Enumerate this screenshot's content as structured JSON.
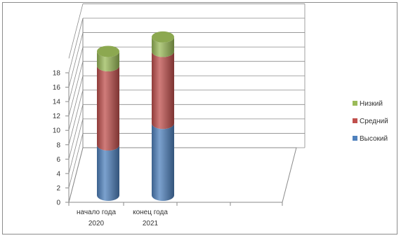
{
  "chart_data": {
    "type": "bar",
    "style": "3d-stacked-cylinder",
    "categories": [
      "начало года 2020",
      "конец года 2021"
    ],
    "category_lines": [
      [
        "начало года",
        "2020"
      ],
      [
        "конец года",
        "2021"
      ]
    ],
    "series": [
      {
        "name": "Высокий",
        "values": [
          7,
          10
        ],
        "color": "#4f81bd"
      },
      {
        "name": "Средний",
        "values": [
          11,
          10
        ],
        "color": "#c0504d"
      },
      {
        "name": "Низкий",
        "values": [
          2,
          2
        ],
        "color": "#9bbb59"
      }
    ],
    "yticks": [
      "0",
      "2",
      "4",
      "6",
      "8",
      "10",
      "12",
      "14",
      "16",
      "18"
    ],
    "ylim": [
      0,
      18
    ],
    "legend_order": [
      2,
      1,
      0
    ],
    "grid": true,
    "legend_position": "right"
  }
}
